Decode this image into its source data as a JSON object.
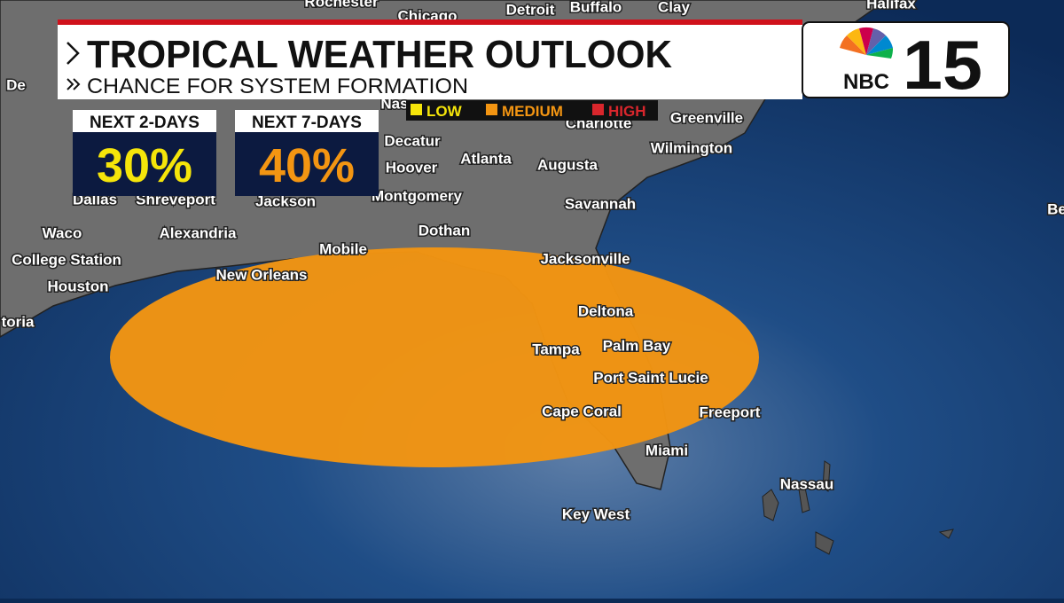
{
  "header": {
    "title": "TROPICAL WEATHER OUTLOOK",
    "subtitle": "CHANCE FOR SYSTEM FORMATION"
  },
  "logo": {
    "network": "NBC",
    "channel": "15"
  },
  "legend": [
    "LOW",
    "MEDIUM",
    "HIGH"
  ],
  "outlook": [
    {
      "label": "NEXT 2-DAYS",
      "chance": "30%"
    },
    {
      "label": "NEXT 7-DAYS",
      "chance": "40%"
    }
  ],
  "cities": [
    "Rochester",
    "Chicago",
    "Detroit",
    "Buffalo",
    "Clay",
    "Halifax",
    "De",
    "Nas",
    "Greenville",
    "Decatur",
    "Charlotte",
    "Hoover",
    "Atlanta",
    "Augusta",
    "Wilmington",
    "Dallas",
    "Shreveport",
    "Jackson",
    "Montgomery",
    "Savannah",
    "Be",
    "Waco",
    "Alexandria",
    "Dothan",
    "Mobile",
    "College Station",
    "Jacksonville",
    "New Orleans",
    "Houston",
    "toria",
    "Deltona",
    "Palm Bay",
    "Tampa",
    "Port Saint Lucie",
    "Cape Coral",
    "Freeport",
    "Miami",
    "Nassau",
    "Key West"
  ]
}
